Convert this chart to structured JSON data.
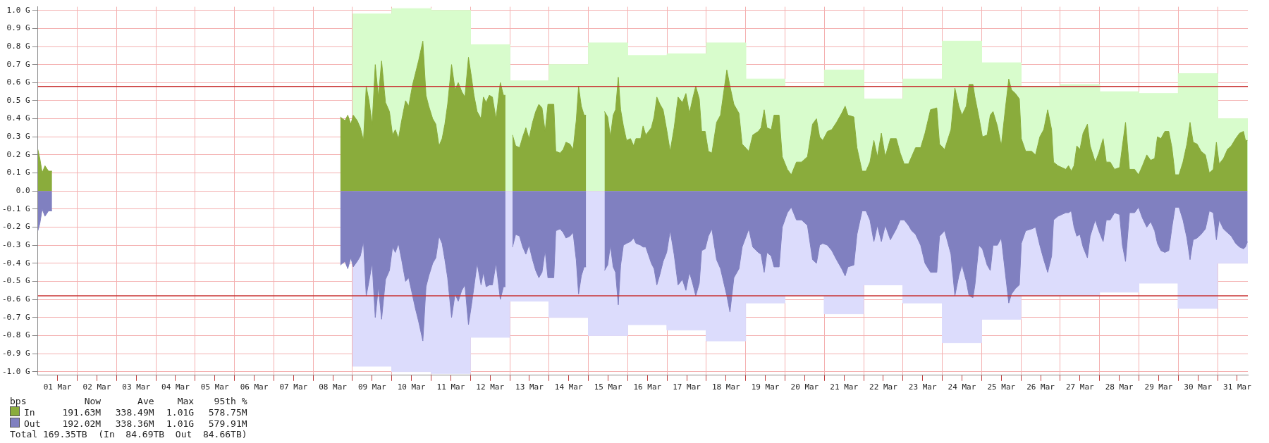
{
  "chart_data": {
    "type": "area",
    "x": [
      "--03-01T00:00",
      "--03-01T01:12",
      "--03-01T02:38",
      "--03-01T04:19",
      "--03-01T06:29",
      "--03-01T08:38",
      "--03-05T00:00",
      "--03-08T16:34",
      "--03-08T19:26",
      "--03-08T21:07",
      "--03-08T23:02",
      "--03-09T00:29",
      "--03-09T02:53",
      "--03-09T04:48",
      "--03-09T06:43",
      "--03-09T08:24",
      "--03-09T10:05",
      "--03-09T12:00",
      "--03-09T13:55",
      "--03-09T15:50",
      "--03-09T17:46",
      "--03-09T20:10",
      "--03-09T22:34",
      "--03-10T00:29",
      "--03-10T02:10",
      "--03-10T04:05",
      "--03-10T06:00",
      "--03-10T08:24",
      "--03-10T10:19",
      "--03-10T12:43",
      "--03-10T14:24",
      "--03-10T16:19",
      "--03-10T18:58",
      "--03-10T20:53",
      "--03-10T22:34",
      "--03-11T00:58",
      "--03-11T02:53",
      "--03-11T04:48",
      "--03-11T06:43",
      "--03-11T08:24",
      "--03-11T10:05",
      "--03-11T12:29",
      "--03-11T14:38",
      "--03-11T16:34",
      "--03-11T18:43",
      "--03-11T20:38",
      "--03-11T22:48",
      "--03-12T00:29",
      "--03-12T02:10",
      "--03-12T04:05",
      "--03-12T06:29",
      "--03-12T07:55",
      "--03-12T09:36",
      "--03-12T11:31",
      "--03-12T13:26",
      "--03-12T15:36",
      "--03-12T18:14",
      "--03-12T20:10",
      "--03-12T21:22",
      "--03-13T00:00",
      "--03-13T01:41",
      "--03-13T03:36",
      "--03-13T06:00",
      "--03-13T07:55",
      "--03-13T09:50",
      "--03-13T11:46",
      "--03-13T13:55",
      "--03-13T15:50",
      "--03-13T17:46",
      "--03-13T19:41",
      "--03-13T21:36",
      "--03-13T23:17",
      "--03-14T02:53",
      "--03-14T04:05",
      "--03-14T06:43",
      "--03-14T08:38",
      "--03-14T10:19",
      "--03-14T12:43",
      "--03-14T14:38",
      "--03-14T16:34",
      "--03-14T18:00",
      "--03-14T19:41",
      "--03-14T21:22",
      "--03-14T22:34",
      "--03-15T04:48",
      "--03-15T09:50",
      "--03-15T11:46",
      "--03-15T13:26",
      "--03-15T15:07",
      "--03-15T16:34",
      "--03-15T18:14",
      "--03-15T19:41",
      "--03-15T21:22",
      "--03-15T23:17",
      "--03-16T01:41",
      "--03-16T03:36",
      "--03-16T05:02",
      "--03-16T07:55",
      "--03-16T09:22",
      "--03-16T11:02",
      "--03-16T14:24",
      "--03-16T16:05",
      "--03-16T17:46",
      "--03-16T19:41",
      "--03-16T21:36",
      "--03-16T23:46",
      "--03-17T01:55",
      "--03-17T04:19",
      "--03-17T06:43",
      "--03-17T09:22",
      "--03-17T11:31",
      "--03-17T13:41",
      "--03-17T15:36",
      "--03-17T17:31",
      "--03-17T19:41",
      "--03-17T21:07",
      "--03-17T23:17",
      "--03-18T01:12",
      "--03-18T03:22",
      "--03-18T06:14",
      "--03-18T08:38",
      "--03-18T12:29",
      "--03-18T14:24",
      "--03-18T16:48",
      "--03-18T19:55",
      "--03-18T21:50",
      "--03-19T01:55",
      "--03-19T04:19",
      "--03-19T07:41",
      "--03-19T09:22",
      "--03-19T11:17",
      "--03-19T12:58",
      "--03-19T15:36",
      "--03-19T17:17",
      "--03-19T20:24",
      "--03-19T22:19",
      "--03-20T01:26",
      "--03-20T03:50",
      "--03-20T06:58",
      "--03-20T10:05",
      "--03-20T13:41",
      "--03-20T16:48",
      "--03-20T19:12",
      "--03-20T21:07",
      "--03-20T23:02",
      "--03-21T01:55",
      "--03-21T04:34",
      "--03-21T07:26",
      "--03-21T10:34",
      "--03-21T12:43",
      "--03-21T14:24",
      "--03-21T18:00",
      "--03-21T19:55",
      "--03-21T23:02",
      "--03-22T01:26",
      "--03-22T03:50",
      "--03-22T06:14",
      "--03-22T08:24",
      "--03-22T10:48",
      "--03-22T13:12",
      "--03-22T16:19",
      "--03-22T19:55",
      "--03-22T22:19",
      "--03-23T00:43",
      "--03-23T03:22",
      "--03-23T05:17",
      "--03-23T07:41",
      "--03-23T10:48",
      "--03-23T13:26",
      "--03-23T16:48",
      "--03-23T20:38",
      "--03-23T22:19",
      "--03-24T01:26",
      "--03-24T05:17",
      "--03-24T07:41",
      "--03-24T10:05",
      "--03-24T12:00",
      "--03-24T14:38",
      "--03-24T16:19",
      "--03-24T18:43",
      "--03-24T19:55",
      "--03-24T22:19",
      "--03-25T00:29",
      "--03-25T03:22",
      "--03-25T05:17",
      "--03-25T06:58",
      "--03-25T09:36",
      "--03-25T12:00",
      "--03-25T14:24",
      "--03-25T16:34",
      "--03-25T18:14",
      "--03-25T20:38",
      "--03-25T23:02",
      "--03-26T00:14",
      "--03-26T02:53",
      "--03-26T06:29",
      "--03-26T08:53",
      "--03-26T11:31",
      "--03-26T13:55",
      "--03-26T16:19",
      "--03-26T18:43",
      "--03-26T19:55",
      "--03-26T22:34",
      "--03-27T00:58",
      "--03-27T03:22",
      "--03-27T05:02",
      "--03-27T06:43",
      "--03-27T08:24",
      "--03-27T10:05",
      "--03-27T12:00",
      "--03-27T13:55",
      "--03-27T16:34",
      "--03-27T18:14",
      "--03-27T21:22",
      "--03-27T23:31",
      "--03-28T02:10",
      "--03-28T04:05",
      "--03-28T06:29",
      "--03-28T09:07",
      "--03-28T12:14",
      "--03-28T13:55",
      "--03-28T15:50",
      "--03-28T18:14",
      "--03-28T21:22",
      "--03-28T23:46",
      "--03-29T02:10",
      "--03-29T04:48",
      "--03-29T07:12",
      "--03-29T09:36",
      "--03-29T11:17",
      "--03-29T13:26",
      "--03-29T15:50",
      "--03-29T18:14",
      "--03-29T20:10",
      "--03-29T22:05",
      "--03-30T00:29",
      "--03-30T02:53",
      "--03-30T05:17",
      "--03-30T07:12",
      "--03-30T09:07",
      "--03-30T11:31",
      "--03-30T13:55",
      "--03-30T16:34",
      "--03-30T18:58",
      "--03-30T21:22",
      "--03-30T23:17",
      "--03-31T00:58",
      "--03-31T03:36",
      "--03-31T06:00",
      "--03-31T08:24",
      "--03-31T11:02",
      "--03-31T13:26",
      "--03-31T15:50",
      "--03-31T17:02",
      "--03-31T18:14"
    ],
    "series": [
      {
        "color": "#d8fccc",
        "x": [
          "--03-09",
          "--03-10",
          "--03-10",
          "--03-11",
          "--03-11",
          "--03-12",
          "--03-12",
          "--03-13",
          "--03-13",
          "--03-14",
          "--03-14",
          "--03-15",
          "--03-15",
          "--03-16",
          "--03-16",
          "--03-17",
          "--03-17",
          "--03-18",
          "--03-18",
          "--03-19",
          "--03-19",
          "--03-20",
          "--03-20",
          "--03-21",
          "--03-21",
          "--03-22",
          "--03-22",
          "--03-23",
          "--03-23",
          "--03-24",
          "--03-24",
          "--03-25",
          "--03-25",
          "--03-26",
          "--03-26",
          "--03-27",
          "--03-27",
          "--03-28",
          "--03-28",
          "--03-29",
          "--03-29",
          "--03-30",
          "--03-30",
          "--03-31",
          "--03-31",
          "--03-31T18:29"
        ],
        "values": [
          0.98,
          0.98,
          1.01,
          1.01,
          1.0,
          1.0,
          0.81,
          0.81,
          0.61,
          0.61,
          0.7,
          0.7,
          0.82,
          0.82,
          0.75,
          0.75,
          0.76,
          0.76,
          0.82,
          0.82,
          0.62,
          0.62,
          0.58,
          0.58,
          0.67,
          0.67,
          0.51,
          0.51,
          0.62,
          0.62,
          0.83,
          0.83,
          0.71,
          0.71,
          0.58,
          0.58,
          0.59,
          0.59,
          0.55,
          0.55,
          0.54,
          0.54,
          0.65,
          0.65,
          0.4,
          0.4
        ]
      },
      {
        "color": "#dcdcfc",
        "x": [
          "--03-09",
          "--03-10",
          "--03-10",
          "--03-11",
          "--03-11",
          "--03-12",
          "--03-12",
          "--03-13",
          "--03-13",
          "--03-14",
          "--03-14",
          "--03-15",
          "--03-15",
          "--03-16",
          "--03-16",
          "--03-17",
          "--03-17",
          "--03-18",
          "--03-18",
          "--03-19",
          "--03-19",
          "--03-20",
          "--03-20",
          "--03-21",
          "--03-21",
          "--03-22",
          "--03-22",
          "--03-23",
          "--03-23",
          "--03-24",
          "--03-24",
          "--03-25",
          "--03-25",
          "--03-26",
          "--03-26",
          "--03-27",
          "--03-27",
          "--03-28",
          "--03-28",
          "--03-29",
          "--03-29",
          "--03-30",
          "--03-30",
          "--03-31",
          "--03-31",
          "--03-31T18:29"
        ],
        "values": [
          -0.97,
          -0.97,
          -1.0,
          -1.0,
          -1.01,
          -1.01,
          -0.81,
          -0.81,
          -0.61,
          -0.61,
          -0.7,
          -0.7,
          -0.8,
          -0.8,
          -0.74,
          -0.74,
          -0.77,
          -0.77,
          -0.83,
          -0.83,
          -0.62,
          -0.62,
          -0.58,
          -0.58,
          -0.68,
          -0.68,
          -0.52,
          -0.52,
          -0.62,
          -0.62,
          -0.84,
          -0.84,
          -0.71,
          -0.71,
          -0.58,
          -0.58,
          -0.58,
          -0.58,
          -0.56,
          -0.56,
          -0.51,
          -0.51,
          -0.65,
          -0.65,
          -0.4,
          -0.4
        ]
      },
      {
        "name": "In",
        "color": "#8aac3c",
        "values": [
          0.23,
          0.18,
          0.1,
          0.14,
          0.11,
          0.11,
          null,
          0.41,
          0.39,
          0.42,
          0.37,
          0.42,
          0.39,
          0.35,
          0.28,
          0.58,
          0.5,
          0.37,
          0.7,
          0.52,
          0.72,
          0.49,
          0.44,
          0.31,
          0.34,
          0.29,
          0.39,
          0.5,
          0.47,
          0.59,
          0.65,
          0.72,
          0.83,
          0.53,
          0.47,
          0.4,
          0.37,
          0.25,
          0.29,
          0.37,
          0.48,
          0.7,
          0.56,
          0.6,
          0.55,
          0.52,
          0.74,
          0.64,
          0.53,
          0.44,
          0.4,
          0.52,
          0.49,
          0.53,
          0.52,
          0.4,
          0.6,
          0.53,
          0.53,
          null,
          0.31,
          0.25,
          0.24,
          0.3,
          0.35,
          0.29,
          0.38,
          0.44,
          0.48,
          0.46,
          0.33,
          0.48,
          0.48,
          0.22,
          0.21,
          0.23,
          0.27,
          0.26,
          0.23,
          0.39,
          0.58,
          0.47,
          0.42,
          0.42,
          null,
          0.44,
          0.41,
          0.3,
          0.42,
          0.45,
          0.63,
          0.45,
          0.36,
          0.28,
          0.29,
          0.25,
          0.29,
          0.29,
          0.36,
          0.31,
          0.35,
          0.41,
          0.52,
          0.48,
          0.45,
          0.34,
          0.22,
          0.35,
          0.52,
          0.49,
          0.54,
          0.43,
          0.51,
          0.58,
          0.51,
          0.33,
          0.33,
          0.22,
          0.21,
          0.38,
          0.42,
          0.67,
          0.58,
          0.48,
          0.43,
          0.26,
          0.22,
          0.31,
          0.33,
          0.35,
          0.45,
          0.35,
          0.34,
          0.42,
          0.42,
          0.19,
          0.12,
          0.09,
          0.16,
          0.16,
          0.19,
          0.37,
          0.4,
          0.3,
          0.28,
          0.33,
          0.34,
          0.38,
          0.43,
          0.47,
          0.42,
          0.41,
          0.24,
          0.11,
          0.11,
          0.16,
          0.28,
          0.19,
          0.32,
          0.19,
          0.29,
          0.29,
          0.21,
          0.15,
          0.15,
          0.19,
          0.24,
          0.24,
          0.32,
          0.45,
          0.46,
          0.26,
          0.23,
          0.34,
          0.57,
          0.47,
          0.42,
          0.47,
          0.59,
          0.59,
          0.52,
          0.41,
          0.3,
          0.31,
          0.42,
          0.44,
          0.36,
          0.25,
          0.45,
          0.62,
          0.56,
          0.54,
          0.51,
          0.29,
          0.22,
          0.22,
          0.2,
          0.3,
          0.34,
          0.45,
          0.34,
          0.16,
          0.14,
          0.13,
          0.12,
          0.14,
          0.11,
          0.14,
          0.25,
          0.23,
          0.32,
          0.37,
          0.25,
          0.16,
          0.21,
          0.29,
          0.16,
          0.16,
          0.12,
          0.13,
          0.25,
          0.38,
          0.12,
          0.12,
          0.09,
          0.14,
          0.2,
          0.17,
          0.18,
          0.3,
          0.29,
          0.33,
          0.33,
          0.24,
          0.09,
          0.09,
          0.16,
          0.26,
          0.38,
          0.27,
          0.26,
          0.22,
          0.2,
          0.1,
          0.12,
          0.27,
          0.15,
          0.18,
          0.23,
          0.25,
          0.29,
          0.32,
          0.33,
          0.28,
          0.28
        ]
      },
      {
        "name": "Out",
        "color": "#8080c0",
        "values": [
          -0.22,
          -0.18,
          -0.1,
          -0.14,
          -0.11,
          -0.11,
          null,
          -0.41,
          -0.39,
          -0.43,
          -0.37,
          -0.42,
          -0.39,
          -0.36,
          -0.28,
          -0.58,
          -0.5,
          -0.4,
          -0.7,
          -0.53,
          -0.71,
          -0.49,
          -0.44,
          -0.31,
          -0.34,
          -0.29,
          -0.38,
          -0.5,
          -0.48,
          -0.58,
          -0.65,
          -0.72,
          -0.83,
          -0.53,
          -0.47,
          -0.4,
          -0.37,
          -0.25,
          -0.29,
          -0.38,
          -0.48,
          -0.7,
          -0.57,
          -0.61,
          -0.55,
          -0.52,
          -0.74,
          -0.64,
          -0.53,
          -0.4,
          -0.52,
          -0.45,
          -0.53,
          -0.52,
          -0.52,
          -0.4,
          -0.6,
          -0.53,
          -0.53,
          null,
          -0.31,
          -0.24,
          -0.25,
          -0.31,
          -0.35,
          -0.3,
          -0.38,
          -0.44,
          -0.48,
          -0.45,
          -0.33,
          -0.48,
          -0.48,
          -0.22,
          -0.21,
          -0.23,
          -0.26,
          -0.25,
          -0.23,
          -0.38,
          -0.57,
          -0.47,
          -0.42,
          -0.42,
          null,
          -0.44,
          -0.41,
          -0.3,
          -0.42,
          -0.45,
          -0.63,
          -0.41,
          -0.3,
          -0.29,
          -0.28,
          -0.26,
          -0.29,
          -0.3,
          -0.31,
          -0.31,
          -0.4,
          -0.43,
          -0.52,
          -0.46,
          -0.39,
          -0.34,
          -0.22,
          -0.35,
          -0.52,
          -0.49,
          -0.55,
          -0.45,
          -0.51,
          -0.58,
          -0.51,
          -0.33,
          -0.32,
          -0.25,
          -0.21,
          -0.38,
          -0.43,
          -0.58,
          -0.67,
          -0.48,
          -0.43,
          -0.31,
          -0.21,
          -0.31,
          -0.34,
          -0.35,
          -0.45,
          -0.34,
          -0.36,
          -0.42,
          -0.42,
          -0.2,
          -0.12,
          -0.09,
          -0.16,
          -0.16,
          -0.19,
          -0.38,
          -0.4,
          -0.3,
          -0.29,
          -0.3,
          -0.33,
          -0.38,
          -0.43,
          -0.47,
          -0.42,
          -0.41,
          -0.24,
          -0.11,
          -0.11,
          -0.16,
          -0.28,
          -0.19,
          -0.28,
          -0.19,
          -0.27,
          -0.21,
          -0.16,
          -0.16,
          -0.19,
          -0.22,
          -0.24,
          -0.3,
          -0.4,
          -0.45,
          -0.45,
          -0.25,
          -0.22,
          -0.35,
          -0.58,
          -0.47,
          -0.41,
          -0.5,
          -0.58,
          -0.59,
          -0.52,
          -0.3,
          -0.32,
          -0.41,
          -0.44,
          -0.3,
          -0.3,
          -0.26,
          -0.45,
          -0.62,
          -0.57,
          -0.54,
          -0.52,
          -0.29,
          -0.22,
          -0.21,
          -0.2,
          -0.3,
          -0.38,
          -0.45,
          -0.36,
          -0.16,
          -0.14,
          -0.13,
          -0.12,
          -0.12,
          -0.11,
          -0.2,
          -0.25,
          -0.24,
          -0.31,
          -0.37,
          -0.25,
          -0.16,
          -0.22,
          -0.28,
          -0.16,
          -0.16,
          -0.12,
          -0.13,
          -0.3,
          -0.39,
          -0.12,
          -0.12,
          -0.09,
          -0.15,
          -0.2,
          -0.17,
          -0.22,
          -0.29,
          -0.33,
          -0.34,
          -0.33,
          -0.2,
          -0.09,
          -0.09,
          -0.16,
          -0.26,
          -0.38,
          -0.27,
          -0.26,
          -0.24,
          -0.21,
          -0.11,
          -0.12,
          -0.27,
          -0.16,
          -0.21,
          -0.23,
          -0.25,
          -0.29,
          -0.31,
          -0.32,
          -0.31,
          -0.28
        ]
      }
    ],
    "xlim": [
      "--03-01T00:00",
      "--03-31T18:29"
    ],
    "xticks": [
      {
        "value": "--03-01T12:00",
        "label": "01 Mar"
      },
      {
        "value": "--03-02",
        "label": null
      },
      {
        "value": "--03-02T12:00",
        "label": "02 Mar"
      },
      {
        "value": "--03-03",
        "label": null
      },
      {
        "value": "--03-03T12:00",
        "label": "03 Mar"
      },
      {
        "value": "--03-04",
        "label": null
      },
      {
        "value": "--03-04T12:00",
        "label": "04 Mar"
      },
      {
        "value": "--03-05",
        "label": null
      },
      {
        "value": "--03-05T12:00",
        "label": "05 Mar"
      },
      {
        "value": "--03-06",
        "label": null
      },
      {
        "value": "--03-06T12:00",
        "label": "06 Mar"
      },
      {
        "value": "--03-07",
        "label": null
      },
      {
        "value": "--03-07T12:00",
        "label": "07 Mar"
      },
      {
        "value": "--03-08",
        "label": null
      },
      {
        "value": "--03-08T12:00",
        "label": "08 Mar"
      },
      {
        "value": "--03-09",
        "label": null
      },
      {
        "value": "--03-09T12:00",
        "label": "09 Mar"
      },
      {
        "value": "--03-10",
        "label": null
      },
      {
        "value": "--03-10T12:00",
        "label": "10 Mar"
      },
      {
        "value": "--03-11",
        "label": null
      },
      {
        "value": "--03-11T12:00",
        "label": "11 Mar"
      },
      {
        "value": "--03-12",
        "label": null
      },
      {
        "value": "--03-12T12:00",
        "label": "12 Mar"
      },
      {
        "value": "--03-13",
        "label": null
      },
      {
        "value": "--03-13T12:00",
        "label": "13 Mar"
      },
      {
        "value": "--03-14",
        "label": null
      },
      {
        "value": "--03-14T12:00",
        "label": "14 Mar"
      },
      {
        "value": "--03-15",
        "label": null
      },
      {
        "value": "--03-15T12:00",
        "label": "15 Mar"
      },
      {
        "value": "--03-16",
        "label": null
      },
      {
        "value": "--03-16T12:00",
        "label": "16 Mar"
      },
      {
        "value": "--03-17",
        "label": null
      },
      {
        "value": "--03-17T12:00",
        "label": "17 Mar"
      },
      {
        "value": "--03-18",
        "label": null
      },
      {
        "value": "--03-18T12:00",
        "label": "18 Mar"
      },
      {
        "value": "--03-19",
        "label": null
      },
      {
        "value": "--03-19T12:00",
        "label": "19 Mar"
      },
      {
        "value": "--03-20",
        "label": null
      },
      {
        "value": "--03-20T12:00",
        "label": "20 Mar"
      },
      {
        "value": "--03-21",
        "label": null
      },
      {
        "value": "--03-21T12:00",
        "label": "21 Mar"
      },
      {
        "value": "--03-22",
        "label": null
      },
      {
        "value": "--03-22T12:00",
        "label": "22 Mar"
      },
      {
        "value": "--03-23",
        "label": null
      },
      {
        "value": "--03-23T12:00",
        "label": "23 Mar"
      },
      {
        "value": "--03-24",
        "label": null
      },
      {
        "value": "--03-24T12:00",
        "label": "24 Mar"
      },
      {
        "value": "--03-25",
        "label": null
      },
      {
        "value": "--03-25T12:00",
        "label": "25 Mar"
      },
      {
        "value": "--03-26",
        "label": null
      },
      {
        "value": "--03-26T12:00",
        "label": "26 Mar"
      },
      {
        "value": "--03-27",
        "label": null
      },
      {
        "value": "--03-27T12:00",
        "label": "27 Mar"
      },
      {
        "value": "--03-28",
        "label": null
      },
      {
        "value": "--03-28T12:00",
        "label": "28 Mar"
      },
      {
        "value": "--03-29",
        "label": null
      },
      {
        "value": "--03-29T12:00",
        "label": "29 Mar"
      },
      {
        "value": "--03-30",
        "label": null
      },
      {
        "value": "--03-30T12:00",
        "label": "30 Mar"
      },
      {
        "value": "--03-31",
        "label": null
      },
      {
        "value": "--03-31T12:00",
        "label": "31 Mar"
      }
    ],
    "ylim": [
      -1.02,
      1.02
    ],
    "yticks": [
      {
        "value": 1,
        "label": "1.0 G"
      },
      {
        "value": 0.9,
        "label": "0.9 G"
      },
      {
        "value": 0.8,
        "label": "0.8 G"
      },
      {
        "value": 0.7,
        "label": "0.7 G"
      },
      {
        "value": 0.6,
        "label": "0.6 G"
      },
      {
        "value": 0.5,
        "label": "0.5 G"
      },
      {
        "value": 0.4,
        "label": "0.4 G"
      },
      {
        "value": 0.3,
        "label": "0.3 G"
      },
      {
        "value": 0.2,
        "label": "0.2 G"
      },
      {
        "value": 0.1,
        "label": "0.1 G"
      },
      {
        "value": 0,
        "label": "0.0"
      },
      {
        "value": -0.1,
        "label": "-0.1 G"
      },
      {
        "value": -0.2,
        "label": "-0.2 G"
      },
      {
        "value": -0.3,
        "label": "-0.3 G"
      },
      {
        "value": -0.4,
        "label": "-0.4 G"
      },
      {
        "value": -0.5,
        "label": "-0.5 G"
      },
      {
        "value": -0.6,
        "label": "-0.6 G"
      },
      {
        "value": -0.7,
        "label": "-0.7 G"
      },
      {
        "value": -0.8,
        "label": "-0.8 G"
      },
      {
        "value": -0.9,
        "label": "-0.9 G"
      },
      {
        "value": -1,
        "label": "-1.0 G"
      }
    ],
    "ref_lines": [
      {
        "axis": "y",
        "value": 0.5788,
        "color": "#c83232"
      },
      {
        "axis": "y",
        "value": -0.5799,
        "color": "#c83232"
      }
    ],
    "grid": true,
    "legend": "bottom",
    "legend_title": "bps",
    "annotations": [
      "Now",
      "Ave",
      "Max",
      "95th %",
      "191.63M",
      "338.49M",
      "1.01G",
      "578.75M",
      "192.02M",
      "338.36M",
      "1.01G",
      "579.91M",
      "Total 169.35TB  (In  84.69TB  Out  84.66TB)"
    ]
  }
}
